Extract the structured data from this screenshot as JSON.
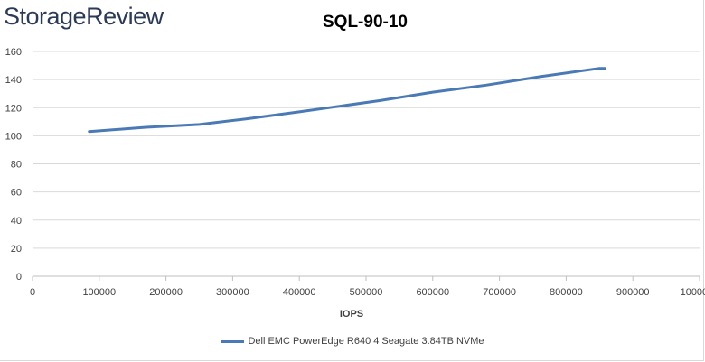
{
  "brand": {
    "logo_text": "StorageReview"
  },
  "colors": {
    "series": "#4a7ab5",
    "grid": "#d9d9d9",
    "text": "#404040",
    "logo": "#2b3a55"
  },
  "chart_data": {
    "type": "line",
    "title": "SQL-90-10",
    "xlabel": "IOPS",
    "ylabel": "",
    "xlim": [
      0,
      1000000
    ],
    "ylim": [
      0,
      160
    ],
    "x_ticks": [
      0,
      100000,
      200000,
      300000,
      400000,
      500000,
      600000,
      700000,
      800000,
      900000,
      1000000
    ],
    "x_tick_labels": [
      "0",
      "100000",
      "200000",
      "300000",
      "400000",
      "500000",
      "600000",
      "700000",
      "800000",
      "900000",
      "1000000"
    ],
    "y_ticks": [
      0,
      20,
      40,
      60,
      80,
      100,
      120,
      140,
      160
    ],
    "grid": true,
    "legend_position": "bottom",
    "series": [
      {
        "name": "Dell EMC PowerEdge R640 4 Seagate 3.84TB NVMe",
        "color": "#4a7ab5",
        "x": [
          85000,
          170000,
          250000,
          320000,
          400000,
          460000,
          520000,
          600000,
          680000,
          760000,
          850000,
          858000
        ],
        "y": [
          103,
          106,
          108,
          112,
          117,
          121,
          125,
          131,
          136,
          142,
          148,
          148
        ]
      }
    ]
  }
}
